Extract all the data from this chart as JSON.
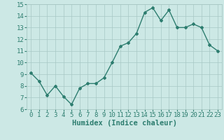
{
  "x": [
    0,
    1,
    2,
    3,
    4,
    5,
    6,
    7,
    8,
    9,
    10,
    11,
    12,
    13,
    14,
    15,
    16,
    17,
    18,
    19,
    20,
    21,
    22,
    23
  ],
  "y": [
    9.1,
    8.4,
    7.2,
    8.0,
    7.1,
    6.4,
    7.8,
    8.2,
    8.2,
    8.7,
    10.0,
    11.4,
    11.7,
    12.5,
    14.3,
    14.7,
    13.6,
    14.5,
    13.0,
    13.0,
    13.3,
    13.0,
    11.5,
    11.0
  ],
  "xlabel": "Humidex (Indice chaleur)",
  "xlim": [
    -0.5,
    23.5
  ],
  "ylim": [
    6,
    15
  ],
  "yticks": [
    6,
    7,
    8,
    9,
    10,
    11,
    12,
    13,
    14,
    15
  ],
  "xticks": [
    0,
    1,
    2,
    3,
    4,
    5,
    6,
    7,
    8,
    9,
    10,
    11,
    12,
    13,
    14,
    15,
    16,
    17,
    18,
    19,
    20,
    21,
    22,
    23
  ],
  "line_color": "#2d7d6f",
  "marker": "D",
  "marker_size": 2.0,
  "bg_color": "#cce8e5",
  "grid_color": "#a8c8c4",
  "tick_color": "#2d7d6f",
  "label_color": "#2d7d6f",
  "line_width": 1.0,
  "xlabel_fontsize": 7.5,
  "tick_fontsize": 6.5
}
